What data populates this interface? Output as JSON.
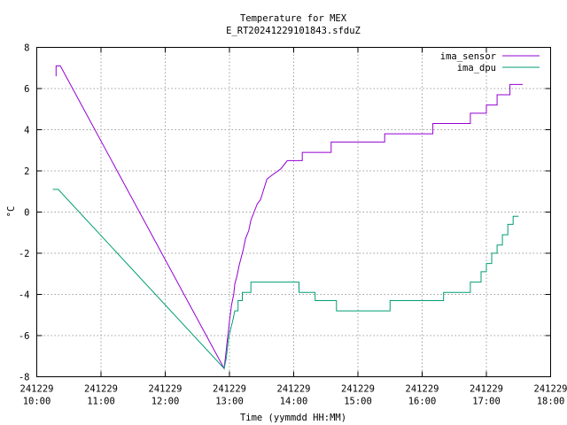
{
  "chart_data": {
    "type": "line",
    "title": "Temperature for MEX",
    "subtitle": "E_RT20241229101843.sfduZ",
    "xlabel": "Time (yymmdd HH:MM)",
    "ylabel": "°C",
    "xlim": [
      "241229 10:00",
      "241229 18:00"
    ],
    "ylim": [
      -8,
      8
    ],
    "grid": true,
    "legend_position": "top-right",
    "x_ticks": [
      {
        "date": "241229",
        "time": "10:00"
      },
      {
        "date": "241229",
        "time": "11:00"
      },
      {
        "date": "241229",
        "time": "12:00"
      },
      {
        "date": "241229",
        "time": "13:00"
      },
      {
        "date": "241229",
        "time": "14:00"
      },
      {
        "date": "241229",
        "time": "15:00"
      },
      {
        "date": "241229",
        "time": "16:00"
      },
      {
        "date": "241229",
        "time": "17:00"
      },
      {
        "date": "241229",
        "time": "18:00"
      }
    ],
    "y_ticks": [
      8,
      6,
      4,
      2,
      0,
      -2,
      -4,
      -6,
      -8
    ],
    "series": [
      {
        "name": "ima_sensor",
        "color": "#9400d3",
        "points": [
          [
            "241229 10:18",
            6.6
          ],
          [
            "241229 10:18",
            7.1
          ],
          [
            "241229 10:22",
            7.1
          ],
          [
            "241229 12:55",
            -7.6
          ],
          [
            "241229 12:57",
            -6.7
          ],
          [
            "241229 12:58",
            -6.2
          ],
          [
            "241229 12:59",
            -5.8
          ],
          [
            "241229 13:00",
            -5.3
          ],
          [
            "241229 13:01",
            -4.9
          ],
          [
            "241229 13:02",
            -4.5
          ],
          [
            "241229 13:04",
            -4.0
          ],
          [
            "241229 13:05",
            -3.5
          ],
          [
            "241229 13:07",
            -3.1
          ],
          [
            "241229 13:09",
            -2.6
          ],
          [
            "241229 13:11",
            -2.2
          ],
          [
            "241229 13:13",
            -1.8
          ],
          [
            "241229 13:15",
            -1.3
          ],
          [
            "241229 13:18",
            -0.9
          ],
          [
            "241229 13:20",
            -0.4
          ],
          [
            "241229 13:23",
            0.0
          ],
          [
            "241229 13:26",
            0.4
          ],
          [
            "241229 13:29",
            0.6
          ],
          [
            "241229 13:32",
            1.1
          ],
          [
            "241229 13:35",
            1.6
          ],
          [
            "241229 13:40",
            1.8
          ],
          [
            "241229 13:48",
            2.1
          ],
          [
            "241229 13:54",
            2.5
          ],
          [
            "241229 14:08",
            2.5
          ],
          [
            "241229 14:08",
            2.9
          ],
          [
            "241229 14:35",
            2.9
          ],
          [
            "241229 14:35",
            3.4
          ],
          [
            "241229 15:25",
            3.4
          ],
          [
            "241229 15:25",
            3.8
          ],
          [
            "241229 16:10",
            3.8
          ],
          [
            "241229 16:10",
            4.3
          ],
          [
            "241229 16:45",
            4.3
          ],
          [
            "241229 16:45",
            4.8
          ],
          [
            "241229 17:00",
            4.8
          ],
          [
            "241229 17:00",
            5.2
          ],
          [
            "241229 17:10",
            5.2
          ],
          [
            "241229 17:10",
            5.7
          ],
          [
            "241229 17:22",
            5.7
          ],
          [
            "241229 17:22",
            6.2
          ],
          [
            "241229 17:34",
            6.2
          ]
        ]
      },
      {
        "name": "ima_dpu",
        "color": "#009e73",
        "points": [
          [
            "241229 10:15",
            1.1
          ],
          [
            "241229 10:20",
            1.1
          ],
          [
            "241229 12:55",
            -7.6
          ],
          [
            "241229 12:57",
            -7.1
          ],
          [
            "241229 12:59",
            -6.2
          ],
          [
            "241229 13:01",
            -5.7
          ],
          [
            "241229 13:03",
            -5.3
          ],
          [
            "241229 13:05",
            -4.8
          ],
          [
            "241229 13:08",
            -4.8
          ],
          [
            "241229 13:08",
            -4.3
          ],
          [
            "241229 13:12",
            -4.3
          ],
          [
            "241229 13:12",
            -3.9
          ],
          [
            "241229 13:20",
            -3.9
          ],
          [
            "241229 13:20",
            -3.4
          ],
          [
            "241229 14:05",
            -3.4
          ],
          [
            "241229 14:05",
            -3.9
          ],
          [
            "241229 14:20",
            -3.9
          ],
          [
            "241229 14:20",
            -4.3
          ],
          [
            "241229 14:40",
            -4.3
          ],
          [
            "241229 14:40",
            -4.8
          ],
          [
            "241229 15:30",
            -4.8
          ],
          [
            "241229 15:30",
            -4.3
          ],
          [
            "241229 16:20",
            -4.3
          ],
          [
            "241229 16:20",
            -3.9
          ],
          [
            "241229 16:45",
            -3.9
          ],
          [
            "241229 16:45",
            -3.4
          ],
          [
            "241229 16:55",
            -3.4
          ],
          [
            "241229 16:55",
            -2.9
          ],
          [
            "241229 17:00",
            -2.9
          ],
          [
            "241229 17:00",
            -2.5
          ],
          [
            "241229 17:05",
            -2.5
          ],
          [
            "241229 17:05",
            -2.0
          ],
          [
            "241229 17:10",
            -2.0
          ],
          [
            "241229 17:10",
            -1.6
          ],
          [
            "241229 17:15",
            -1.6
          ],
          [
            "241229 17:15",
            -1.1
          ],
          [
            "241229 17:20",
            -1.1
          ],
          [
            "241229 17:20",
            -0.6
          ],
          [
            "241229 17:25",
            -0.6
          ],
          [
            "241229 17:25",
            -0.2
          ],
          [
            "241229 17:30",
            -0.2
          ]
        ]
      }
    ]
  }
}
